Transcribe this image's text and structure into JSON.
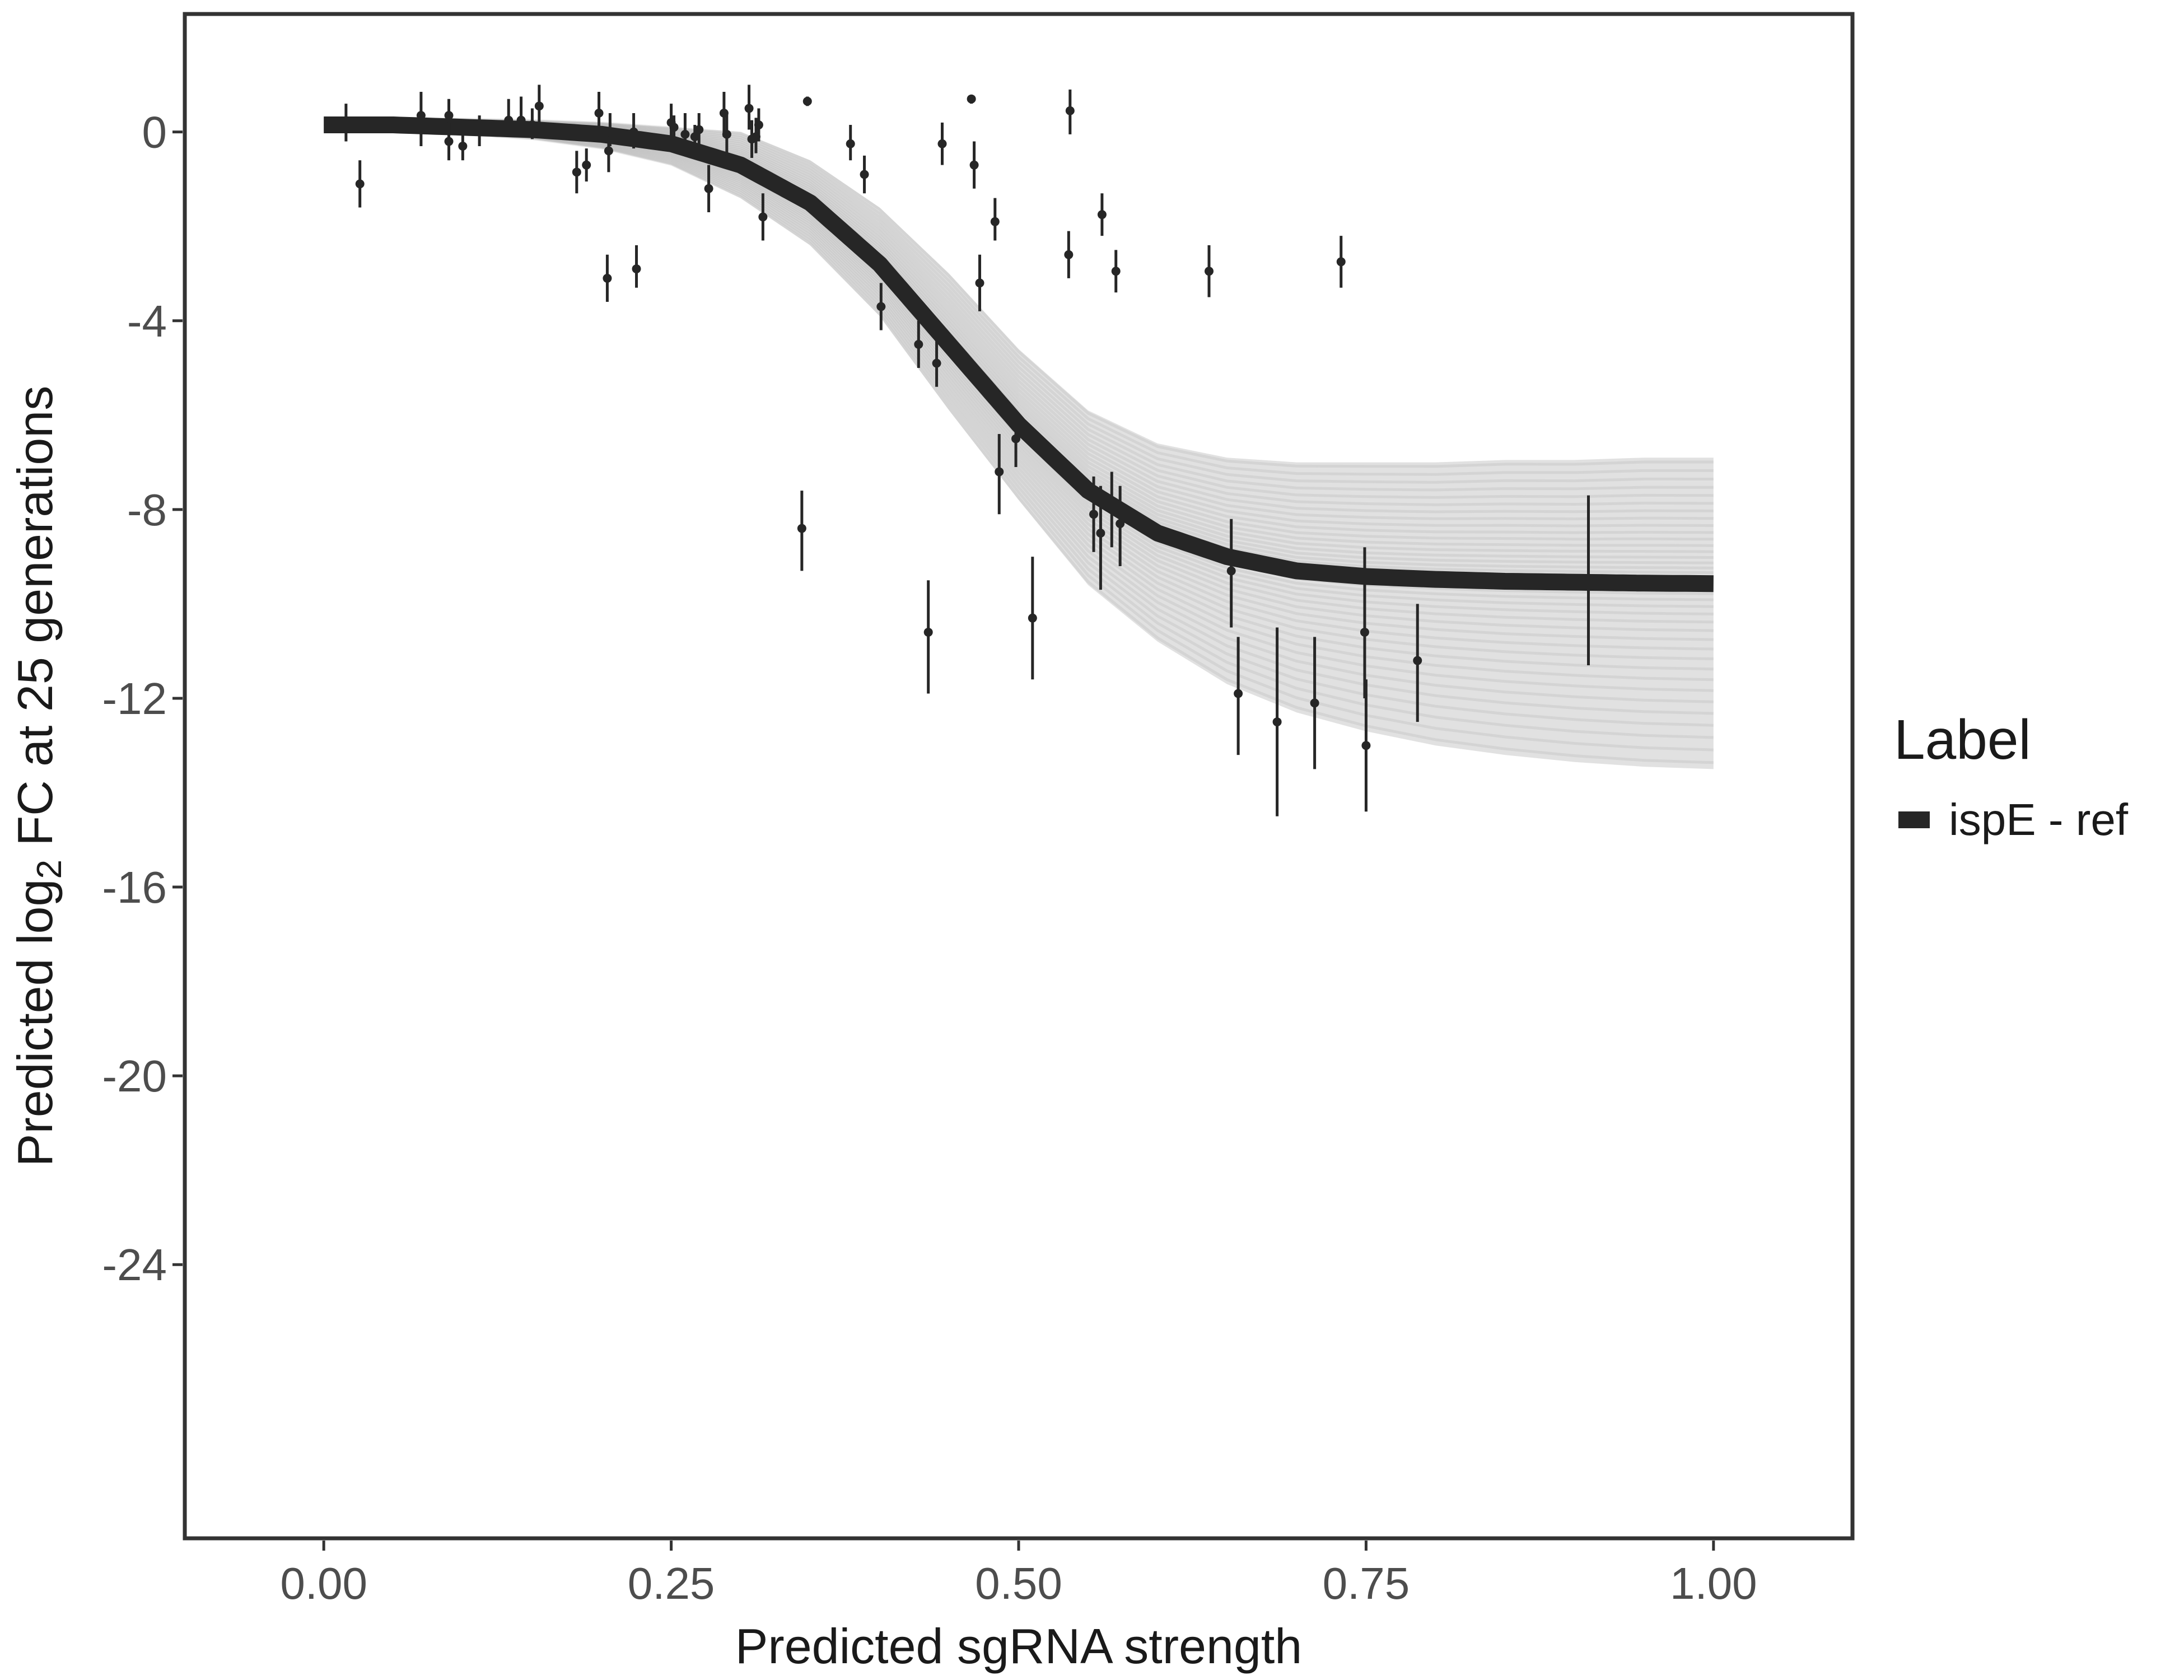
{
  "chart_data": {
    "type": "line",
    "xlabel": "Predicted sgRNA strength",
    "ylabel_prefix": "Predicted  log",
    "ylabel_subscript": "2",
    "ylabel_suffix": " FC at 25 generations",
    "xlim": [
      -0.1,
      1.1
    ],
    "ylim": [
      -29.8,
      2.5
    ],
    "x_ticks": [
      0.0,
      0.25,
      0.5,
      0.75,
      1.0
    ],
    "x_tick_labels": [
      "0.00",
      "0.25",
      "0.50",
      "0.75",
      "1.00"
    ],
    "y_ticks": [
      0,
      -4,
      -8,
      -12,
      -16,
      -20,
      -24
    ],
    "y_tick_labels": [
      "0",
      "-4",
      "-8",
      "-12",
      "-16",
      "-20",
      "-24"
    ],
    "grid": false,
    "legend": {
      "title": "Label",
      "position": "right",
      "entries": [
        {
          "label": "ispE - ref",
          "color": "#262626"
        }
      ]
    },
    "series": [
      {
        "name": "ispE - ref",
        "kind": "fit_curve",
        "color": "#262626",
        "x": [
          0.0,
          0.05,
          0.1,
          0.15,
          0.2,
          0.25,
          0.3,
          0.35,
          0.4,
          0.45,
          0.5,
          0.55,
          0.6,
          0.65,
          0.7,
          0.75,
          0.8,
          0.85,
          0.9,
          0.95,
          1.0
        ],
        "y": [
          0.15,
          0.15,
          0.1,
          0.05,
          -0.05,
          -0.25,
          -0.7,
          -1.5,
          -2.8,
          -4.5,
          -6.2,
          -7.6,
          -8.5,
          -9.0,
          -9.3,
          -9.42,
          -9.48,
          -9.52,
          -9.54,
          -9.56,
          -9.57
        ]
      },
      {
        "name": "",
        "kind": "posterior_band",
        "color": "#aaaaaa",
        "x": [
          0.0,
          0.05,
          0.1,
          0.15,
          0.2,
          0.25,
          0.3,
          0.35,
          0.4,
          0.45,
          0.5,
          0.55,
          0.6,
          0.65,
          0.7,
          0.75,
          0.8,
          0.85,
          0.9,
          0.95,
          1.0
        ],
        "upper": [
          0.3,
          0.3,
          0.28,
          0.25,
          0.2,
          0.1,
          0.0,
          -0.6,
          -1.6,
          -3.0,
          -4.6,
          -5.9,
          -6.6,
          -6.9,
          -7.0,
          -7.0,
          -7.0,
          -6.95,
          -6.95,
          -6.9,
          -6.9
        ],
        "lower": [
          0.0,
          0.0,
          -0.05,
          -0.15,
          -0.35,
          -0.7,
          -1.4,
          -2.4,
          -3.9,
          -5.9,
          -7.8,
          -9.6,
          -10.8,
          -11.7,
          -12.3,
          -12.7,
          -13.0,
          -13.2,
          -13.35,
          -13.45,
          -13.5
        ]
      },
      {
        "name": "",
        "kind": "observed_points",
        "color": "#262626",
        "points": [
          {
            "x": 0.016,
            "y": 0.2,
            "lo": -0.2,
            "hi": 0.6
          },
          {
            "x": 0.026,
            "y": -1.1,
            "lo": -1.6,
            "hi": -0.6
          },
          {
            "x": 0.07,
            "y": 0.35,
            "lo": -0.3,
            "hi": 0.85
          },
          {
            "x": 0.09,
            "y": 0.35,
            "lo": -0.1,
            "hi": 0.7
          },
          {
            "x": 0.09,
            "y": -0.2,
            "lo": -0.6,
            "hi": 0.2
          },
          {
            "x": 0.1,
            "y": -0.3,
            "lo": -0.6,
            "hi": 0.05
          },
          {
            "x": 0.112,
            "y": 0.1,
            "lo": -0.3,
            "hi": 0.35
          },
          {
            "x": 0.133,
            "y": 0.25,
            "lo": -0.1,
            "hi": 0.7
          },
          {
            "x": 0.142,
            "y": 0.25,
            "lo": -0.1,
            "hi": 0.75
          },
          {
            "x": 0.15,
            "y": 0.15,
            "lo": -0.15,
            "hi": 0.5
          },
          {
            "x": 0.155,
            "y": 0.55,
            "lo": 0.1,
            "hi": 1.0
          },
          {
            "x": 0.182,
            "y": -0.85,
            "lo": -1.3,
            "hi": -0.4
          },
          {
            "x": 0.189,
            "y": -0.7,
            "lo": -1.05,
            "hi": -0.35
          },
          {
            "x": 0.198,
            "y": 0.4,
            "lo": -0.1,
            "hi": 0.85
          },
          {
            "x": 0.204,
            "y": -3.1,
            "lo": -3.6,
            "hi": -2.6
          },
          {
            "x": 0.205,
            "y": -0.4,
            "lo": -0.85,
            "hi": 0.1
          },
          {
            "x": 0.206,
            "y": 0.0,
            "lo": -0.3,
            "hi": 0.4
          },
          {
            "x": 0.223,
            "y": 0.0,
            "lo": -0.35,
            "hi": 0.4
          },
          {
            "x": 0.225,
            "y": -2.9,
            "lo": -3.3,
            "hi": -2.4
          },
          {
            "x": 0.25,
            "y": 0.2,
            "lo": -0.15,
            "hi": 0.6
          },
          {
            "x": 0.252,
            "y": 0.1,
            "lo": -0.2,
            "hi": 0.35
          },
          {
            "x": 0.26,
            "y": -0.05,
            "lo": -0.4,
            "hi": 0.4
          },
          {
            "x": 0.267,
            "y": -0.1,
            "lo": -0.4,
            "hi": 0.15
          },
          {
            "x": 0.27,
            "y": 0.05,
            "lo": -0.35,
            "hi": 0.4
          },
          {
            "x": 0.277,
            "y": -1.2,
            "lo": -1.7,
            "hi": -0.7
          },
          {
            "x": 0.288,
            "y": 0.4,
            "lo": -0.1,
            "hi": 0.85
          },
          {
            "x": 0.29,
            "y": -0.05,
            "lo": -0.5,
            "hi": 0.4
          },
          {
            "x": 0.306,
            "y": 0.5,
            "lo": 0.05,
            "hi": 1.0
          },
          {
            "x": 0.308,
            "y": -0.15,
            "lo": -0.55,
            "hi": 0.25
          },
          {
            "x": 0.311,
            "y": -0.1,
            "lo": -0.45,
            "hi": 0.3
          },
          {
            "x": 0.313,
            "y": 0.15,
            "lo": -0.2,
            "hi": 0.5
          },
          {
            "x": 0.316,
            "y": -1.8,
            "lo": -2.3,
            "hi": -1.3
          },
          {
            "x": 0.344,
            "y": -8.4,
            "lo": -9.3,
            "hi": -7.6
          },
          {
            "x": 0.348,
            "y": 0.65,
            "lo": 0.55,
            "hi": 0.75
          },
          {
            "x": 0.379,
            "y": -0.25,
            "lo": -0.6,
            "hi": 0.15
          },
          {
            "x": 0.389,
            "y": -0.9,
            "lo": -1.3,
            "hi": -0.5
          },
          {
            "x": 0.401,
            "y": -3.7,
            "lo": -4.2,
            "hi": -3.2
          },
          {
            "x": 0.428,
            "y": -4.5,
            "lo": -5.0,
            "hi": -4.0
          },
          {
            "x": 0.435,
            "y": -10.6,
            "lo": -11.9,
            "hi": -9.5
          },
          {
            "x": 0.441,
            "y": -4.9,
            "lo": -5.4,
            "hi": -4.4
          },
          {
            "x": 0.445,
            "y": -0.25,
            "lo": -0.7,
            "hi": 0.2
          },
          {
            "x": 0.466,
            "y": 0.7,
            "lo": 0.6,
            "hi": 0.75
          },
          {
            "x": 0.468,
            "y": -0.7,
            "lo": -1.2,
            "hi": -0.2
          },
          {
            "x": 0.472,
            "y": -3.2,
            "lo": -3.8,
            "hi": -2.6
          },
          {
            "x": 0.483,
            "y": -1.9,
            "lo": -2.3,
            "hi": -1.4
          },
          {
            "x": 0.486,
            "y": -7.2,
            "lo": -8.1,
            "hi": -6.4
          },
          {
            "x": 0.498,
            "y": -6.5,
            "lo": -7.1,
            "hi": -5.9
          },
          {
            "x": 0.51,
            "y": -10.3,
            "lo": -11.6,
            "hi": -9.0
          },
          {
            "x": 0.536,
            "y": -2.6,
            "lo": -3.1,
            "hi": -2.1
          },
          {
            "x": 0.537,
            "y": 0.45,
            "lo": -0.05,
            "hi": 0.9
          },
          {
            "x": 0.554,
            "y": -8.1,
            "lo": -8.9,
            "hi": -7.3
          },
          {
            "x": 0.559,
            "y": -8.5,
            "lo": -9.7,
            "hi": -7.5
          },
          {
            "x": 0.56,
            "y": -1.75,
            "lo": -2.2,
            "hi": -1.3
          },
          {
            "x": 0.567,
            "y": -8.0,
            "lo": -8.8,
            "hi": -7.2
          },
          {
            "x": 0.57,
            "y": -2.95,
            "lo": -3.4,
            "hi": -2.5
          },
          {
            "x": 0.573,
            "y": -8.3,
            "lo": -9.2,
            "hi": -7.5
          },
          {
            "x": 0.637,
            "y": -2.95,
            "lo": -3.5,
            "hi": -2.4
          },
          {
            "x": 0.653,
            "y": -9.3,
            "lo": -10.5,
            "hi": -8.2
          },
          {
            "x": 0.658,
            "y": -11.9,
            "lo": -13.2,
            "hi": -10.7
          },
          {
            "x": 0.686,
            "y": -12.5,
            "lo": -14.5,
            "hi": -10.5
          },
          {
            "x": 0.713,
            "y": -12.1,
            "lo": -13.5,
            "hi": -10.7
          },
          {
            "x": 0.732,
            "y": -2.75,
            "lo": -3.3,
            "hi": -2.2
          },
          {
            "x": 0.749,
            "y": -10.6,
            "lo": -12.0,
            "hi": -8.8
          },
          {
            "x": 0.75,
            "y": -13.0,
            "lo": -14.4,
            "hi": -11.6
          },
          {
            "x": 0.787,
            "y": -11.2,
            "lo": -12.5,
            "hi": -10.0
          },
          {
            "x": 0.91,
            "y": -9.5,
            "lo": -11.3,
            "hi": -7.7
          }
        ]
      }
    ]
  }
}
